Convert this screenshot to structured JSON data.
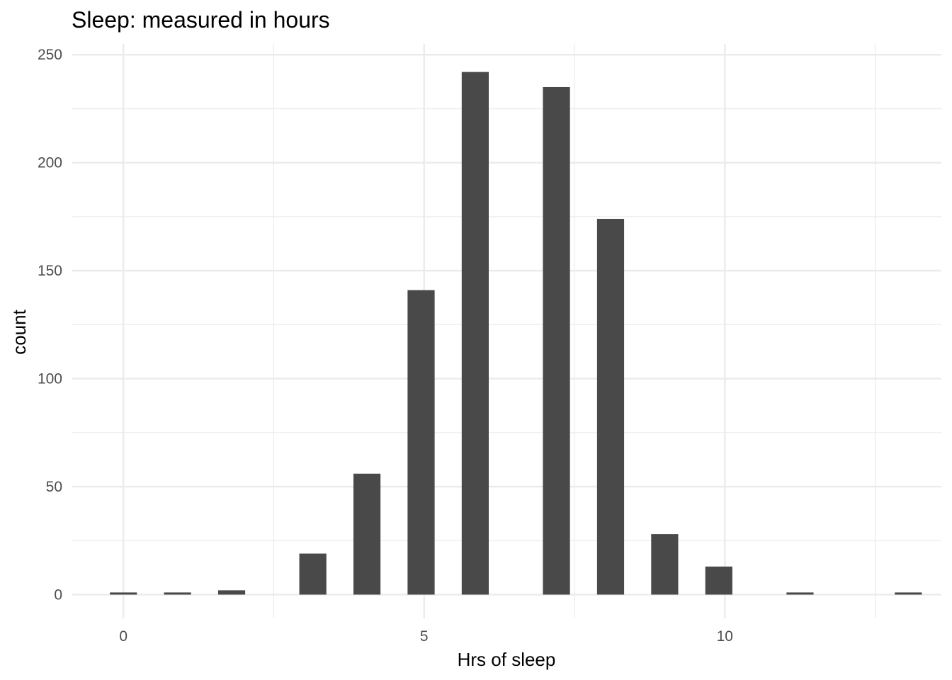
{
  "chart_data": {
    "type": "bar",
    "title": "Sleep: measured in hours",
    "xlabel": "Hrs of sleep",
    "ylabel": "count",
    "xlim": [
      -0.85,
      13.6
    ],
    "ylim": [
      -11,
      255
    ],
    "x_ticks": [
      0,
      5,
      10
    ],
    "x_minor_ticks": [
      2.5,
      7.5,
      12.5
    ],
    "y_ticks": [
      0,
      50,
      100,
      150,
      200,
      250
    ],
    "y_minor_ticks": [
      25,
      75,
      125,
      175,
      225
    ],
    "bar_width": 0.45,
    "grid": true,
    "legend": "none",
    "bar_color": "#494949",
    "x": [
      0,
      0.9,
      1.8,
      3.15,
      4.05,
      4.95,
      5.85,
      7.2,
      8.1,
      9.0,
      9.9,
      11.25,
      13.05
    ],
    "values": [
      1,
      1,
      2,
      19,
      56,
      141,
      242,
      235,
      174,
      28,
      13,
      1,
      1
    ]
  }
}
